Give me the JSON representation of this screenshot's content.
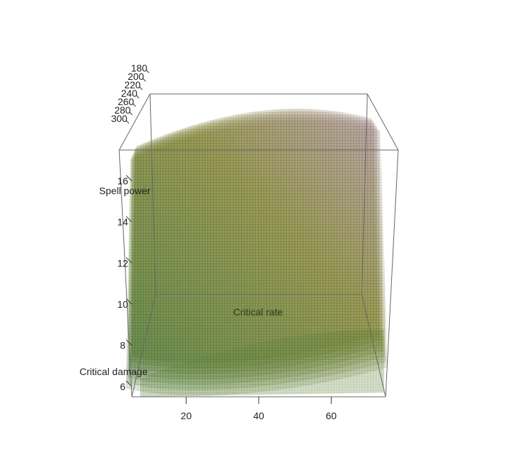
{
  "chart_data": {
    "type": "surface3d",
    "x_axis": {
      "label": "Critical rate",
      "ticks": [
        20,
        40,
        60
      ],
      "range": [
        5,
        75
      ]
    },
    "y_axis": {
      "label": "Spell power",
      "ticks": [
        6,
        8,
        10,
        12,
        14,
        16
      ],
      "range": [
        5.5,
        17.5
      ]
    },
    "z_axis": {
      "label": "Critical damage",
      "ticks": [
        300,
        280,
        260,
        240,
        220,
        200,
        180
      ],
      "range": [
        180,
        300
      ]
    },
    "surface_layers": [
      180,
      200,
      220,
      240,
      260,
      280,
      300
    ],
    "colors": {
      "low": "#5a7a55",
      "mid": "#4f7a28",
      "high_olive": "#8a8a3a",
      "high_mauve": "#b79aa0",
      "mesh": "#3f5a3a",
      "box": "#555555"
    },
    "grid": false,
    "legend": "none"
  }
}
